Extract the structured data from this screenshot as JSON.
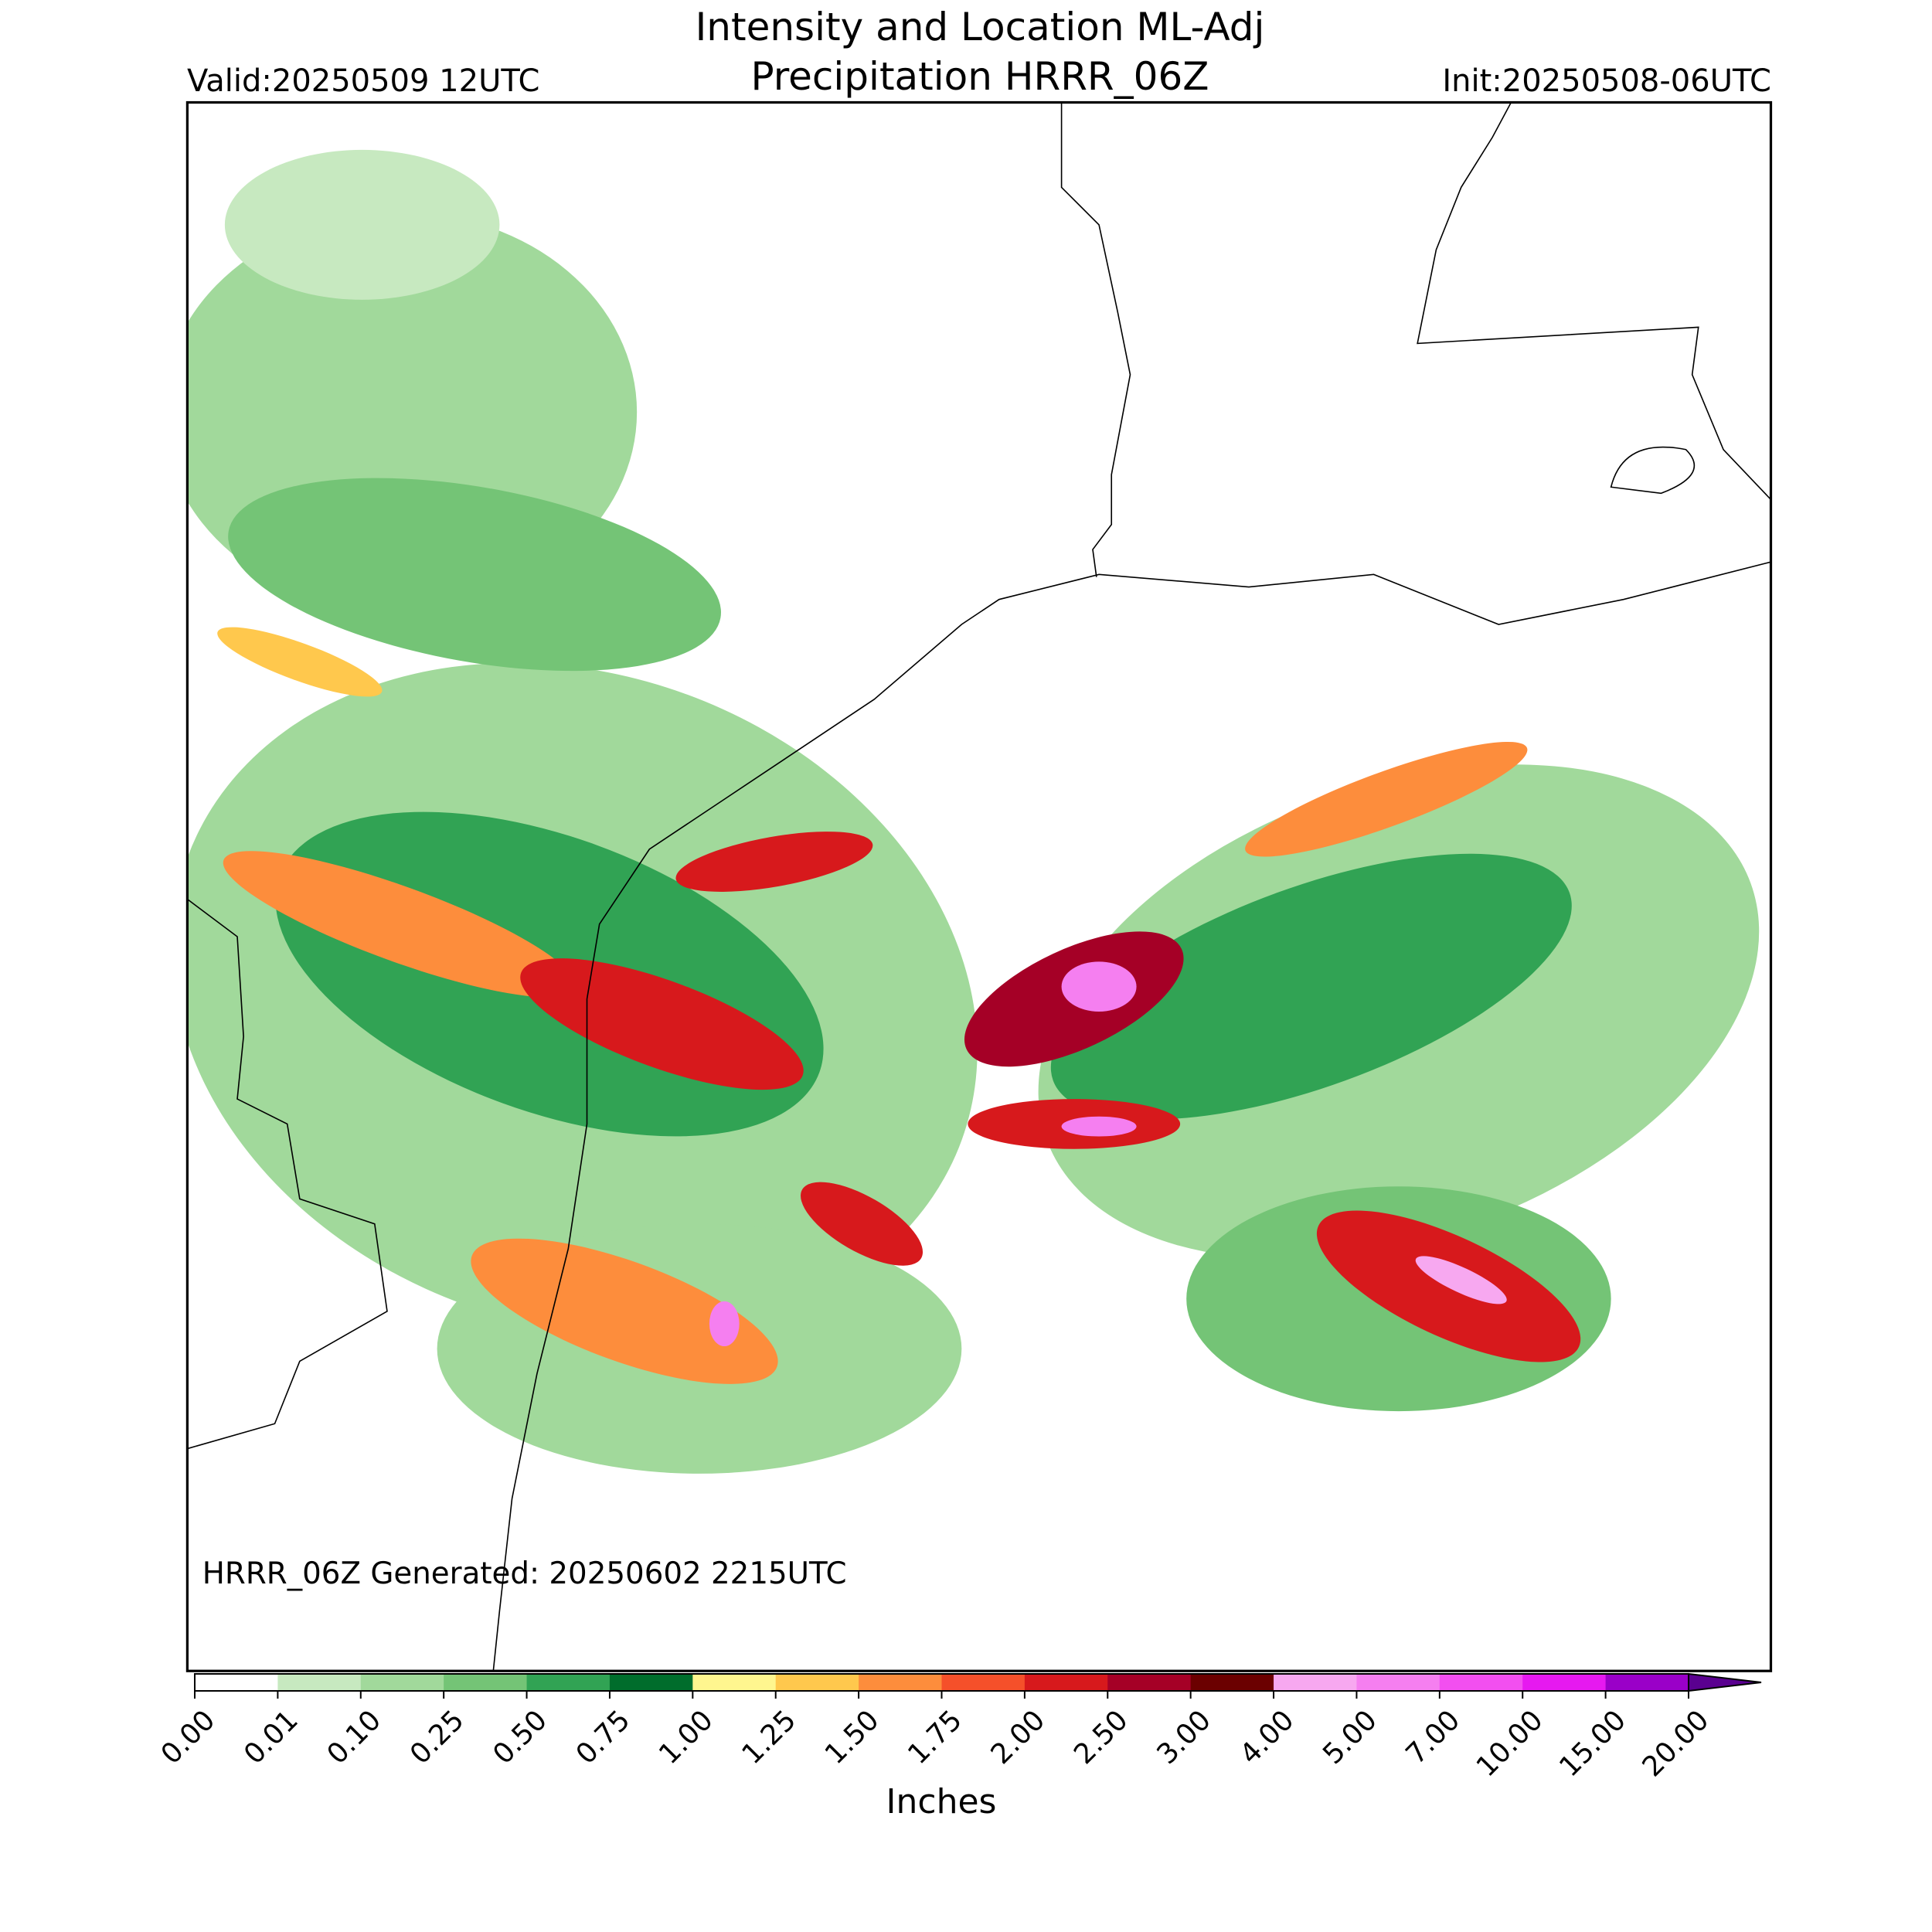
{
  "header": {
    "title": [
      "Intensity and Location ML-Adj",
      "Precipitation HRRR_06Z"
    ],
    "valid": "Valid:20250509 12UTC",
    "init": "Init:20250508-06UTC"
  },
  "map": {
    "generated": "HRRR_06Z Generated: 20250602 2215UTC"
  },
  "colorbar": {
    "label": "Inches",
    "ticks": [
      {
        "value": 0,
        "label": "0.00"
      },
      0.01,
      {
        "value": 0.1,
        "label": "0.10"
      },
      0.25,
      {
        "value": 0.5,
        "label": "0.50"
      },
      0.75,
      {
        "value": 1,
        "label": "1.00"
      },
      1.25,
      {
        "value": 1.5,
        "label": "1.50"
      },
      1.75,
      {
        "value": 2,
        "label": "2.00"
      },
      {
        "value": 2.5,
        "label": "2.50"
      },
      {
        "value": 3,
        "label": "3.00"
      },
      {
        "value": 4,
        "label": "4.00"
      },
      {
        "value": 5,
        "label": "5.00"
      },
      {
        "value": 7,
        "label": "7.00"
      },
      {
        "value": 10,
        "label": "10.00"
      },
      {
        "value": 15,
        "label": "15.00"
      },
      {
        "value": 20,
        "label": "20.00"
      }
    ],
    "colors": [
      "#ffffff",
      "#c7e9c0",
      "#a1d99b",
      "#74c476",
      "#31a354",
      "#006d2c",
      "#fff68f",
      "#ffc84d",
      "#fd8d3c",
      "#f5502a",
      "#d7191c",
      "#a50026",
      "#6b0000",
      "#f7a8f0",
      "#f57ff0",
      "#f24ff0",
      "#e619f0",
      "#9a00c8"
    ],
    "extend_color": "#5a0090"
  }
}
